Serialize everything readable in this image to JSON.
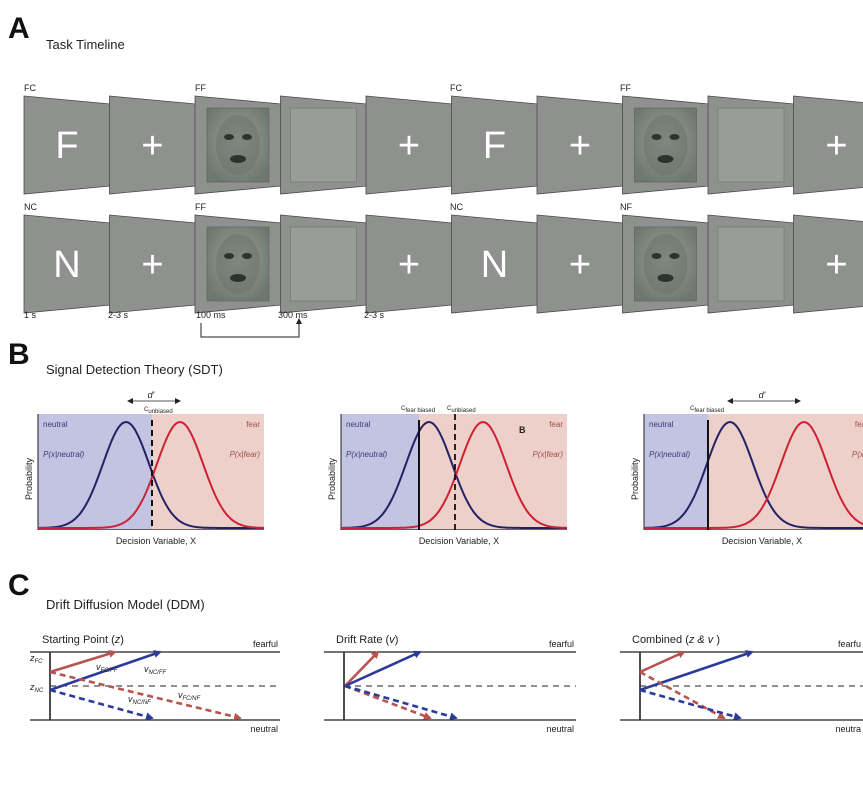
{
  "panel_a": {
    "letter": "A",
    "title": "Task Timeline",
    "row1_labels": [
      "FC",
      "FF",
      "FC",
      "FF"
    ],
    "row2_labels": [
      "NC",
      "FF",
      "NC",
      "NF"
    ],
    "row1_frames": [
      "F",
      "+",
      "face",
      "mask",
      "+",
      "F",
      "+",
      "face",
      "mask",
      "+"
    ],
    "row2_frames": [
      "N",
      "+",
      "face",
      "mask",
      "+",
      "N",
      "+",
      "face",
      "mask",
      "+"
    ],
    "timing": [
      "1 s",
      "2-3 s",
      "100 ms",
      "300 ms",
      "2-3 s"
    ]
  },
  "panel_b": {
    "letter": "B",
    "title": "Signal  Detection Theory (SDT)",
    "ylabel": "Probability",
    "xlabel": "Decision Variable, X",
    "neutral_label": "neutral",
    "fear_label": "fear",
    "fear_label_cut": "fea",
    "p_neutral": "P(x|neutral)",
    "p_fear": "P(x|fear)",
    "p_fear_cut": "P(x|",
    "d_prime": "d'",
    "c_unbiased": "C",
    "c_unbiased_sub": "unbiased",
    "c_fear_biased": "C",
    "c_fear_biased_sub": "fear biased",
    "inner_b": "B",
    "colors": {
      "neutral_bg": "#c3c4e2",
      "fear_bg": "#edd0c9",
      "neutral_curve": "#222266",
      "fear_curve": "#cc2233"
    }
  },
  "panel_c": {
    "letter": "C",
    "title": "Drift Diffusion Model (DDM)",
    "sub1": {
      "title": "Starting Point (",
      "title_var": "z",
      "title_end": ")",
      "top": "fearful",
      "bottom": "neutral"
    },
    "sub2": {
      "title": "Drift Rate (",
      "title_var": "v",
      "title_end": ")",
      "top": "fearful",
      "bottom": "neutral"
    },
    "sub3": {
      "title": "Combined (",
      "title_var": "z & v",
      "title_end": " )",
      "top": "fearfu",
      "bottom": "neutra"
    },
    "z_fc": "z",
    "z_fc_sub": "FC",
    "z_nc": "z",
    "z_nc_sub": "NC",
    "v_fc_ff": "v",
    "v_fc_ff_sub": "FC/FF",
    "v_nc_ff": "v",
    "v_nc_ff_sub": "NC/FF",
    "v_nc_nf": "v",
    "v_nc_nf_sub": "NC/NF",
    "v_fc_nf": "v",
    "v_fc_nf_sub": "FC/NF",
    "colors": {
      "red": "#b85450",
      "blue": "#2a3b9c"
    }
  }
}
